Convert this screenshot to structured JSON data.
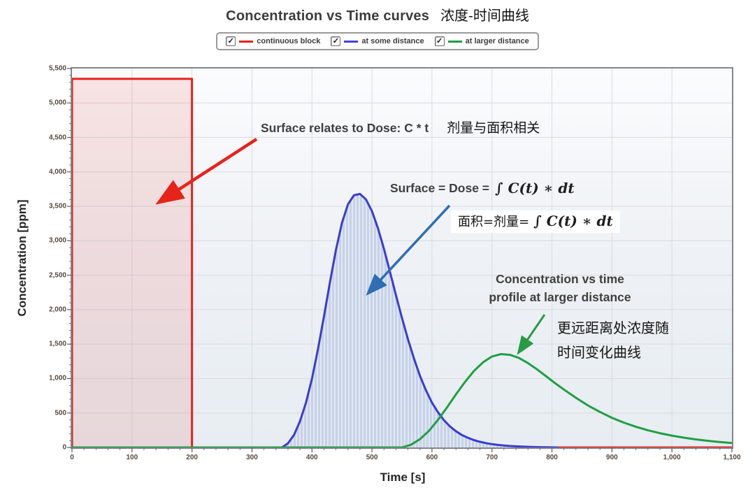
{
  "title": {
    "en": "Concentration vs Time curves",
    "zh": "浓度-时间曲线"
  },
  "legend": {
    "items": [
      {
        "label": "continuous block",
        "color": "#e8231a",
        "checked": true
      },
      {
        "label": "at some distance",
        "color": "#4343de",
        "checked": true
      },
      {
        "label": "at larger distance",
        "color": "#1f9e44",
        "checked": true
      }
    ]
  },
  "axes": {
    "x": {
      "label": "Time [s]",
      "min": 0,
      "max": 1100,
      "major_step": 100,
      "minor_step": 20,
      "tick_labels": [
        "0",
        "100",
        "200",
        "300",
        "400",
        "500",
        "600",
        "700",
        "800",
        "900",
        "1,000",
        "1,100"
      ]
    },
    "y": {
      "label": "Concentration  [ppm]",
      "min": 0,
      "max": 5500,
      "major_step": 500,
      "minor_step": 100,
      "tick_labels": [
        "0",
        "500",
        "1,000",
        "1,500",
        "2,000",
        "2,500",
        "3,000",
        "3,500",
        "4,000",
        "4,500",
        "5,000",
        "5,500"
      ]
    }
  },
  "chart_data": {
    "type": "line",
    "title": "Concentration vs Time curves 浓度-时间曲线",
    "xlabel": "Time [s]",
    "ylabel": "Concentration [ppm]",
    "xlim": [
      0,
      1100
    ],
    "ylim": [
      0,
      5500
    ],
    "grid": true,
    "legend_position": "top",
    "series": [
      {
        "name": "continuous block",
        "color": "#e8231a",
        "width": 3,
        "fill": "rgba(232,60,50,0.12)",
        "shape": "step",
        "points": [
          [
            0,
            0
          ],
          [
            0,
            5350
          ],
          [
            200,
            5350
          ],
          [
            200,
            0
          ],
          [
            1100,
            0
          ]
        ]
      },
      {
        "name": "at some distance",
        "color": "#3b3bd0",
        "width": 3,
        "fill": "hatch",
        "shape": "peak",
        "peak_x": 480,
        "peak_y": 3680,
        "points": [
          [
            350,
            0
          ],
          [
            360,
            60
          ],
          [
            370,
            180
          ],
          [
            380,
            380
          ],
          [
            390,
            650
          ],
          [
            400,
            1000
          ],
          [
            410,
            1430
          ],
          [
            420,
            1900
          ],
          [
            430,
            2400
          ],
          [
            440,
            2870
          ],
          [
            450,
            3260
          ],
          [
            460,
            3530
          ],
          [
            470,
            3660
          ],
          [
            480,
            3680
          ],
          [
            490,
            3600
          ],
          [
            500,
            3430
          ],
          [
            510,
            3180
          ],
          [
            520,
            2880
          ],
          [
            530,
            2550
          ],
          [
            540,
            2210
          ],
          [
            550,
            1880
          ],
          [
            560,
            1570
          ],
          [
            570,
            1290
          ],
          [
            580,
            1040
          ],
          [
            590,
            830
          ],
          [
            600,
            650
          ],
          [
            610,
            510
          ],
          [
            620,
            395
          ],
          [
            630,
            305
          ],
          [
            640,
            235
          ],
          [
            650,
            180
          ],
          [
            660,
            140
          ],
          [
            670,
            107
          ],
          [
            680,
            82
          ],
          [
            690,
            63
          ],
          [
            700,
            48
          ],
          [
            710,
            37
          ],
          [
            720,
            28
          ],
          [
            730,
            21
          ],
          [
            740,
            16
          ],
          [
            750,
            12
          ],
          [
            760,
            9
          ],
          [
            770,
            6
          ],
          [
            780,
            4
          ],
          [
            790,
            2
          ],
          [
            800,
            1
          ],
          [
            810,
            0
          ]
        ]
      },
      {
        "name": "at larger distance",
        "color": "#1f9e44",
        "width": 3,
        "fill": "none",
        "shape": "peak",
        "peak_x": 715,
        "peak_y": 1355,
        "points": [
          [
            0,
            0
          ],
          [
            550,
            0
          ],
          [
            565,
            40
          ],
          [
            580,
            120
          ],
          [
            595,
            240
          ],
          [
            610,
            400
          ],
          [
            625,
            580
          ],
          [
            640,
            770
          ],
          [
            655,
            950
          ],
          [
            670,
            1110
          ],
          [
            685,
            1235
          ],
          [
            700,
            1320
          ],
          [
            715,
            1355
          ],
          [
            730,
            1345
          ],
          [
            745,
            1300
          ],
          [
            760,
            1225
          ],
          [
            775,
            1135
          ],
          [
            790,
            1035
          ],
          [
            805,
            935
          ],
          [
            820,
            840
          ],
          [
            840,
            720
          ],
          [
            860,
            610
          ],
          [
            880,
            515
          ],
          [
            900,
            430
          ],
          [
            920,
            360
          ],
          [
            940,
            300
          ],
          [
            960,
            250
          ],
          [
            980,
            207
          ],
          [
            1000,
            172
          ],
          [
            1020,
            142
          ],
          [
            1040,
            117
          ],
          [
            1060,
            96
          ],
          [
            1080,
            79
          ],
          [
            1100,
            65
          ]
        ]
      }
    ]
  },
  "annotations": {
    "dose_note": {
      "en": "Surface relates to Dose: C * t",
      "zh": "剂量与面积相关"
    },
    "formula_en": {
      "prefix": "Surface = Dose =",
      "math": "∫ C(t) ∗ dt"
    },
    "formula_zh": {
      "prefix": "面积=剂量=",
      "math": "∫ C(t) ∗ dt"
    },
    "profile_note": {
      "line1": "Concentration vs time",
      "line2": "profile at larger distance"
    },
    "profile_note_zh": {
      "line1": "更远距离处浓度随",
      "line2": "时间变化曲线"
    },
    "arrows": [
      {
        "name": "red-annotation-arrow",
        "color": "#e8231a",
        "width": 4.5,
        "from": [
          367,
          199
        ],
        "to": [
          228,
          289
        ]
      },
      {
        "name": "blue-annotation-arrow",
        "color": "#2f6db5",
        "width": 3.5,
        "from": [
          643,
          294
        ],
        "to": [
          527,
          419
        ]
      },
      {
        "name": "green-annotation-arrow",
        "color": "#2a9a44",
        "width": 3,
        "from": [
          779,
          450
        ],
        "to": [
          742,
          504
        ]
      }
    ]
  }
}
